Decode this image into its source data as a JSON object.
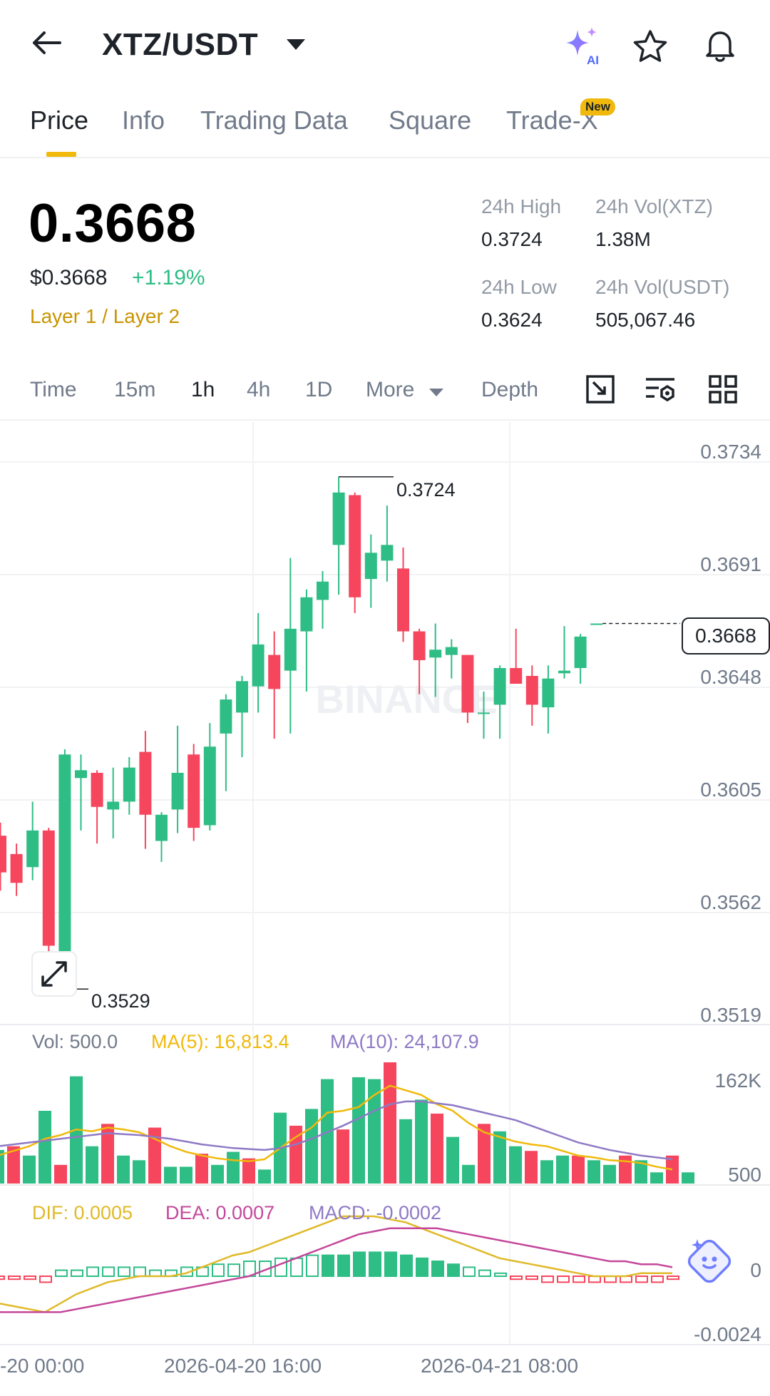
{
  "header": {
    "pair": "XTZ/USDT",
    "icons": [
      "back-arrow-icon",
      "caret-down-icon",
      "ai-sparkle-icon",
      "star-icon",
      "bell-icon"
    ],
    "ai_label": "AI"
  },
  "tabs": [
    {
      "label": "Price",
      "active": true
    },
    {
      "label": "Info",
      "active": false
    },
    {
      "label": "Trading Data",
      "active": false
    },
    {
      "label": "Square",
      "active": false
    },
    {
      "label": "Trade-X",
      "active": false
    }
  ],
  "new_badge": "New",
  "ticker": {
    "price": "0.3668",
    "usd_price": "$0.3668",
    "change": "+1.19%",
    "tags": "Layer 1 / Layer 2",
    "high_label": "24h High",
    "high": "0.3724",
    "low_label": "24h Low",
    "low": "0.3624",
    "vol_base_label": "24h Vol(XTZ)",
    "vol_base": "1.38M",
    "vol_quote_label": "24h Vol(USDT)",
    "vol_quote": "505,067.46"
  },
  "timeframes": {
    "items": [
      "Time",
      "15m",
      "1h",
      "4h",
      "1D",
      "More",
      "Depth"
    ],
    "active": "1h",
    "tool_icons": [
      "fullscreen-icon",
      "indicator-settings-icon",
      "grid-layout-icon"
    ]
  },
  "colors": {
    "up": "#2ebd85",
    "down": "#f6465d",
    "ma5": "#f0b90b",
    "ma10": "#8e79c5",
    "dif": "#e0b928",
    "dea": "#c4479b",
    "accent": "#f0b90b"
  },
  "chart": {
    "price_axis": [
      "0.3734",
      "0.3691",
      "0.3648",
      "0.3605",
      "0.3562",
      "0.3519"
    ],
    "current_price": "0.3668",
    "high_marker": "0.3724",
    "low_marker": "0.3529",
    "watermark": "BINANCE",
    "volume_legend": {
      "vol": "Vol: 500.0",
      "ma5": "MA(5): 16,813.4",
      "ma10": "MA(10): 24,107.9"
    },
    "volume_axis": [
      "162K",
      "500"
    ],
    "macd_legend": {
      "dif": "DIF: 0.0005",
      "dea": "DEA: 0.0007",
      "macd": "MACD: -0.0002"
    },
    "macd_axis": [
      "0",
      "-0.0024"
    ],
    "date_labels": [
      "-20 00:00",
      "2026-04-20 16:00",
      "2026-04-21 08:00"
    ]
  },
  "chart_data": {
    "type": "candlestick",
    "interval": "1h",
    "ylim": [
      0.3519,
      0.3734
    ],
    "candles": [
      {
        "o": 0.3587,
        "h": 0.3592,
        "l": 0.3566,
        "c": 0.3573
      },
      {
        "o": 0.358,
        "h": 0.3584,
        "l": 0.3564,
        "c": 0.3569
      },
      {
        "o": 0.3575,
        "h": 0.36,
        "l": 0.357,
        "c": 0.3589
      },
      {
        "o": 0.3589,
        "h": 0.359,
        "l": 0.3529,
        "c": 0.3545
      },
      {
        "o": 0.3542,
        "h": 0.362,
        "l": 0.354,
        "c": 0.3618
      },
      {
        "o": 0.3609,
        "h": 0.3618,
        "l": 0.3589,
        "c": 0.3612
      },
      {
        "o": 0.3611,
        "h": 0.3612,
        "l": 0.3584,
        "c": 0.3598
      },
      {
        "o": 0.3597,
        "h": 0.3613,
        "l": 0.3586,
        "c": 0.36
      },
      {
        "o": 0.36,
        "h": 0.3617,
        "l": 0.3595,
        "c": 0.3613
      },
      {
        "o": 0.3619,
        "h": 0.3627,
        "l": 0.3582,
        "c": 0.3595
      },
      {
        "o": 0.3585,
        "h": 0.3596,
        "l": 0.3577,
        "c": 0.3595
      },
      {
        "o": 0.3597,
        "h": 0.3629,
        "l": 0.3588,
        "c": 0.3611
      },
      {
        "o": 0.3618,
        "h": 0.3622,
        "l": 0.3585,
        "c": 0.359
      },
      {
        "o": 0.3591,
        "h": 0.363,
        "l": 0.3589,
        "c": 0.3621
      },
      {
        "o": 0.3626,
        "h": 0.3641,
        "l": 0.3604,
        "c": 0.3639
      },
      {
        "o": 0.3634,
        "h": 0.3648,
        "l": 0.3617,
        "c": 0.3646
      },
      {
        "o": 0.3644,
        "h": 0.3672,
        "l": 0.3634,
        "c": 0.366
      },
      {
        "o": 0.3656,
        "h": 0.3665,
        "l": 0.3624,
        "c": 0.3643
      },
      {
        "o": 0.365,
        "h": 0.3693,
        "l": 0.3626,
        "c": 0.3666
      },
      {
        "o": 0.3665,
        "h": 0.3681,
        "l": 0.3642,
        "c": 0.3678
      },
      {
        "o": 0.3677,
        "h": 0.3688,
        "l": 0.3666,
        "c": 0.3684
      },
      {
        "o": 0.3698,
        "h": 0.3724,
        "l": 0.3679,
        "c": 0.3718
      },
      {
        "o": 0.3717,
        "h": 0.3718,
        "l": 0.3672,
        "c": 0.3678
      },
      {
        "o": 0.3685,
        "h": 0.3702,
        "l": 0.3674,
        "c": 0.3695
      },
      {
        "o": 0.3692,
        "h": 0.3713,
        "l": 0.3684,
        "c": 0.3698
      },
      {
        "o": 0.3689,
        "h": 0.3697,
        "l": 0.3661,
        "c": 0.3665
      },
      {
        "o": 0.3665,
        "h": 0.3666,
        "l": 0.3641,
        "c": 0.3654
      },
      {
        "o": 0.3655,
        "h": 0.3668,
        "l": 0.364,
        "c": 0.3658
      },
      {
        "o": 0.3656,
        "h": 0.3662,
        "l": 0.3647,
        "c": 0.3659
      },
      {
        "o": 0.3656,
        "h": 0.3656,
        "l": 0.363,
        "c": 0.3634
      },
      {
        "o": 0.3634,
        "h": 0.3642,
        "l": 0.3624,
        "c": 0.3634
      },
      {
        "o": 0.3637,
        "h": 0.3652,
        "l": 0.3624,
        "c": 0.3651
      },
      {
        "o": 0.3651,
        "h": 0.3666,
        "l": 0.3645,
        "c": 0.3645
      },
      {
        "o": 0.3648,
        "h": 0.3652,
        "l": 0.3629,
        "c": 0.3637
      },
      {
        "o": 0.3636,
        "h": 0.3652,
        "l": 0.3626,
        "c": 0.3647
      },
      {
        "o": 0.3649,
        "h": 0.3667,
        "l": 0.3647,
        "c": 0.365
      },
      {
        "o": 0.3651,
        "h": 0.3664,
        "l": 0.3645,
        "c": 0.3663
      },
      {
        "o": 0.3668,
        "h": 0.3668,
        "l": 0.3668,
        "c": 0.3668
      }
    ],
    "volumes": [
      36,
      40,
      30,
      78,
      20,
      115,
      40,
      64,
      30,
      25,
      60,
      18,
      18,
      32,
      20,
      34,
      27,
      15,
      76,
      62,
      80,
      112,
      58,
      114,
      112,
      130,
      69,
      90,
      75,
      50,
      20,
      64,
      56,
      40,
      35,
      25,
      30,
      30,
      25,
      20,
      30,
      25,
      12,
      30,
      12
    ],
    "ma5": [
      30,
      35,
      40,
      48,
      52,
      58,
      56,
      60,
      58,
      55,
      48,
      40,
      34,
      30,
      27,
      25,
      24,
      26,
      38,
      50,
      60,
      76,
      78,
      82,
      95,
      105,
      100,
      95,
      85,
      78,
      65,
      55,
      50,
      45,
      42,
      40,
      35,
      30,
      28,
      25,
      24,
      22,
      18,
      15
    ],
    "ma10": [
      40,
      42,
      44,
      46,
      48,
      50,
      52,
      54,
      53,
      52,
      50,
      48,
      45,
      42,
      40,
      38,
      37,
      36,
      38,
      42,
      48,
      55,
      62,
      70,
      78,
      85,
      88,
      88,
      86,
      84,
      80,
      76,
      72,
      68,
      62,
      56,
      50,
      44,
      40,
      36,
      33,
      30,
      28,
      26
    ],
    "macd_hist": [
      -1,
      -1,
      -1,
      -2,
      2,
      2,
      3,
      3,
      3,
      3,
      2,
      2,
      3,
      3,
      4,
      4,
      5,
      5,
      6,
      6,
      7,
      7,
      7,
      8,
      8,
      8,
      7,
      6,
      5,
      4,
      3,
      2,
      1,
      -1,
      -1,
      -2,
      -2,
      -2,
      -2,
      -2,
      -2,
      -2,
      -2,
      -1
    ],
    "dif": [
      -9,
      -10,
      -11,
      -12,
      -9,
      -6,
      -4,
      -2,
      -1,
      0,
      0,
      0,
      1,
      3,
      5,
      7,
      8,
      10,
      12,
      14,
      16,
      18,
      20,
      20,
      20,
      19,
      18,
      16,
      14,
      12,
      10,
      8,
      6,
      5,
      4,
      3,
      2,
      1,
      0,
      0,
      0,
      1,
      1,
      1
    ],
    "dea": [
      -12,
      -12,
      -12,
      -12,
      -12,
      -11,
      -10,
      -9,
      -8,
      -7,
      -6,
      -5,
      -4,
      -3,
      -2,
      -1,
      0,
      2,
      4,
      6,
      8,
      10,
      12,
      14,
      15,
      16,
      16,
      16,
      16,
      15,
      14,
      13,
      12,
      11,
      10,
      9,
      8,
      7,
      6,
      5,
      5,
      4,
      4,
      3
    ]
  }
}
